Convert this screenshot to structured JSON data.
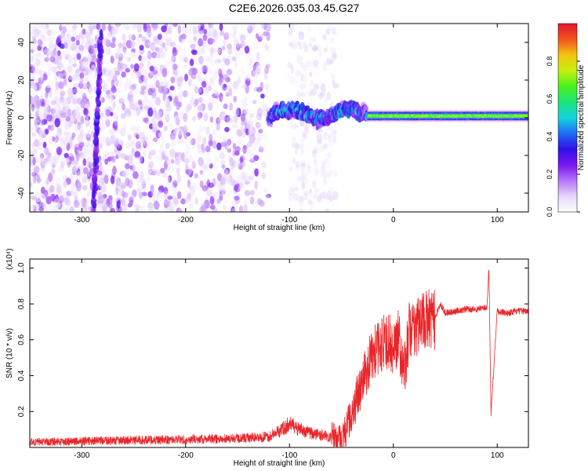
{
  "figure": {
    "title": "C2E6.2026.035.03.45.G27"
  },
  "colors": {
    "line": "#e8262a",
    "axis": "#000000",
    "colormap": [
      "#ffffff",
      "#e6d6fb",
      "#b574f7",
      "#7b16f1",
      "#2f10e8",
      "#1f6cf2",
      "#12d4e0",
      "#1fe37a",
      "#48f21c",
      "#c7f00e",
      "#f3c312",
      "#f2531f",
      "#e3162f"
    ]
  },
  "chart_data": [
    {
      "type": "heatmap",
      "title": "",
      "xlabel": "Height of straight line (km)",
      "ylabel": "Frequency (Hz)",
      "xlim": [
        -350,
        130
      ],
      "ylim": [
        -50,
        50
      ],
      "xticks": [
        -300,
        -200,
        -100,
        0,
        100
      ],
      "yticks": [
        -40,
        -20,
        0,
        20,
        40
      ],
      "colorbar": {
        "label": "Normalized spectral amplitude",
        "range": [
          0,
          1
        ],
        "ticks": [
          "0.0",
          "0.2",
          "0.4",
          "0.6",
          "0.8"
        ]
      },
      "features": [
        {
          "name": "noise region",
          "x_range": [
            -350,
            -120
          ],
          "amplitude": 0.15,
          "freq_spread": 50
        },
        {
          "name": "sparse noise",
          "x_range": [
            -100,
            -55
          ],
          "amplitude": 0.08,
          "freq_spread": 50
        },
        {
          "name": "oscillating band",
          "x_range": [
            -120,
            -25
          ],
          "amplitude": 0.35,
          "freq_center": 2,
          "freq_spread": 6
        },
        {
          "name": "direct signal band",
          "x_range": [
            -25,
            130
          ],
          "amplitude": 0.7,
          "freq_center": 1,
          "freq_spread": 3
        },
        {
          "name": "vertical streak",
          "x_range": [
            -290,
            -280
          ],
          "amplitude": 0.25,
          "freq_range": [
            -50,
            45
          ]
        }
      ]
    },
    {
      "type": "line",
      "title": "",
      "xlabel": "Height of straight line (km)",
      "ylabel": "SNR (10 * v/v)",
      "scale_label": "(x10⁴)",
      "xlim": [
        -350,
        130
      ],
      "ylim": [
        0,
        1.05
      ],
      "xticks": [
        -300,
        -200,
        -100,
        0,
        100
      ],
      "yticks": [
        "0.2",
        "0.4",
        "0.6",
        "0.8",
        "1.0"
      ],
      "series": [
        {
          "name": "SNR",
          "x": [
            -350,
            -300,
            -250,
            -200,
            -150,
            -120,
            -110,
            -100,
            -90,
            -80,
            -70,
            -60,
            -50,
            -45,
            -40,
            -35,
            -30,
            -25,
            -20,
            -15,
            -10,
            -5,
            0,
            5,
            10,
            15,
            20,
            25,
            30,
            40,
            45,
            50,
            60,
            70,
            80,
            90,
            92,
            94,
            100,
            110,
            120,
            130
          ],
          "values": [
            0.03,
            0.035,
            0.04,
            0.045,
            0.05,
            0.06,
            0.09,
            0.13,
            0.1,
            0.08,
            0.07,
            0.055,
            0.05,
            0.1,
            0.2,
            0.28,
            0.35,
            0.45,
            0.52,
            0.55,
            0.58,
            0.6,
            0.55,
            0.63,
            0.4,
            0.64,
            0.67,
            0.69,
            0.7,
            0.72,
            0.8,
            0.75,
            0.76,
            0.77,
            0.77,
            0.78,
            1.0,
            0.19,
            0.76,
            0.75,
            0.76,
            0.76
          ]
        }
      ]
    }
  ]
}
